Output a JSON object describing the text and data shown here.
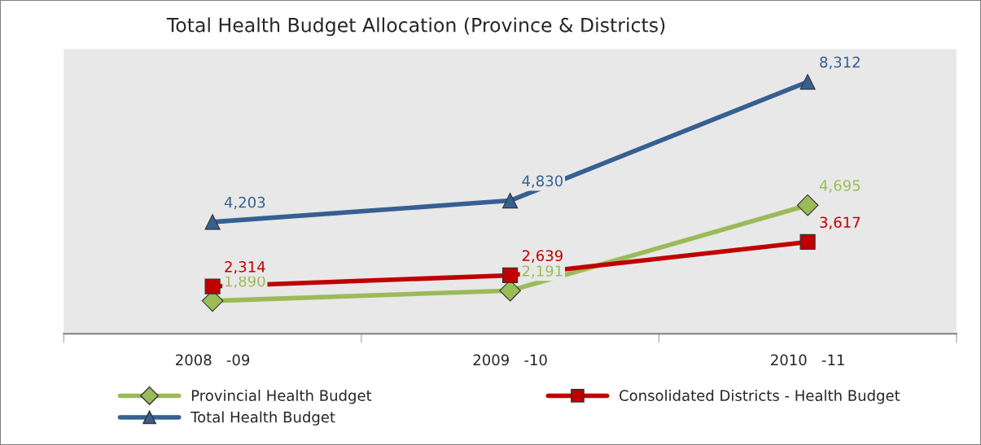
{
  "chart_data": {
    "type": "line",
    "title": "Total Health Budget Allocation (Province & Districts)",
    "categories": [
      "2008   -09",
      "2009   -10",
      "2010   -11"
    ],
    "series": [
      {
        "name": "Provincial Health Budget",
        "color": "#9bbb59",
        "marker": "diamond",
        "values": [
          1890,
          2191,
          4695
        ],
        "value_labels": [
          "1,890",
          "2,191",
          "4,695"
        ]
      },
      {
        "name": "Consolidated Districts - Health Budget",
        "color": "#c00000",
        "marker": "square",
        "values": [
          2314,
          2639,
          3617
        ],
        "value_labels": [
          "2,314",
          "2,639",
          "3,617"
        ]
      },
      {
        "name": "Total Health Budget",
        "color": "#376092",
        "marker": "triangle",
        "values": [
          4203,
          4830,
          8312
        ],
        "value_labels": [
          "4,203",
          "4,830",
          "8,312"
        ]
      }
    ],
    "legend": "bottom"
  }
}
